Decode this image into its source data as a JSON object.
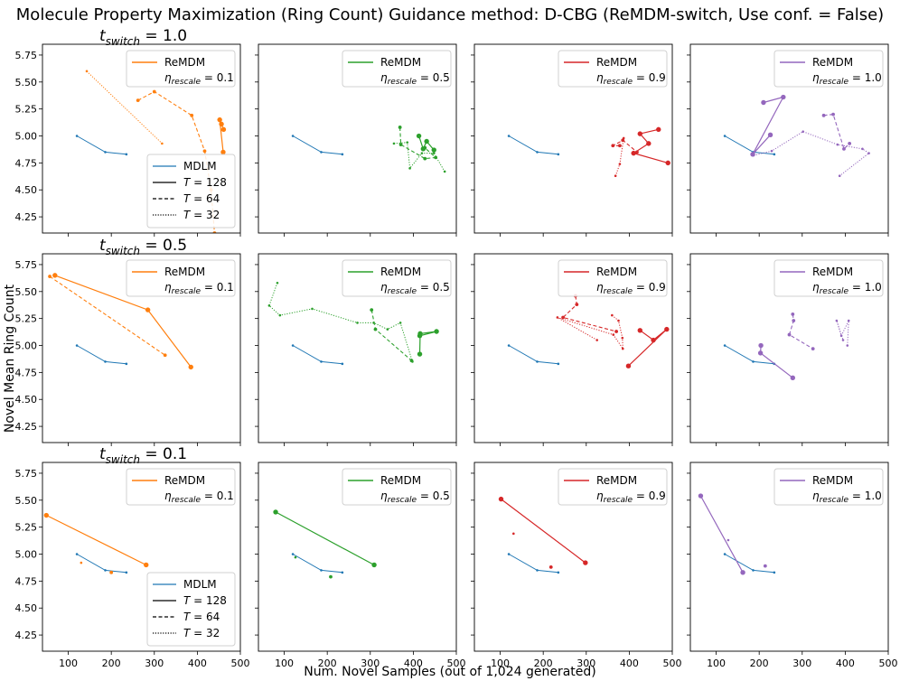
{
  "title": "Molecule Property Maximization (Ring Count) Guidance method: D-CBG (ReMDM-switch, Use conf. = False)",
  "xlabel": "Num. Novel Samples (out of 1,024 generated)",
  "ylabel": "Novel Mean Ring Count",
  "row_titles": [
    "t_switch = 1.0",
    "t_switch = 0.5",
    "t_switch = 0.1"
  ],
  "colors": {
    "mdlm": "#1f77b4",
    "eta_0.1": "#ff7f0e",
    "eta_0.5": "#2ca02c",
    "eta_0.9": "#d62728",
    "eta_1.0": "#9467bd",
    "black": "#000000"
  },
  "legend_remdm": "ReMDM",
  "eta_labels": [
    "0.1",
    "0.5",
    "0.9",
    "1.0"
  ],
  "legend_lower": [
    "MDLM",
    "T = 128",
    "T = 64",
    "T = 32"
  ],
  "chart_data": {
    "type": "line",
    "grid": "3x4",
    "xlim": [
      40,
      500
    ],
    "ylim": [
      4.1,
      5.85
    ],
    "xticks": [
      100,
      200,
      300,
      400,
      500
    ],
    "xtick_labels": [
      "100",
      "200",
      "300",
      "400",
      "500"
    ],
    "yticks": [
      4.25,
      4.5,
      4.75,
      5.0,
      5.25,
      5.5,
      5.75
    ],
    "ytick_labels": [
      "4.25",
      "4.50",
      "4.75",
      "5.00",
      "5.25",
      "5.50",
      "5.75"
    ],
    "mdlm": [
      [
        120,
        5.0
      ],
      [
        186,
        4.85
      ],
      [
        235,
        4.83
      ]
    ],
    "rows": [
      {
        "t_switch": "1.0",
        "panels": [
          {
            "eta": "0.1",
            "T128": [
              [
                461,
                5.06
              ],
              [
                456,
                5.11
              ],
              [
                452,
                5.15
              ],
              [
                460,
                4.85
              ]
            ],
            "T64": [
              [
                262,
                5.33
              ],
              [
                300,
                5.41
              ],
              [
                387,
                5.19
              ],
              [
                417,
                4.86
              ],
              [
                432,
                4.5
              ],
              [
                440,
                4.1
              ]
            ],
            "T32": [
              [
                143,
                5.6
              ],
              [
                318,
                4.93
              ]
            ]
          },
          {
            "eta": "0.5",
            "T128": [
              [
                413,
                5.0
              ],
              [
                423,
                4.88
              ],
              [
                431,
                4.95
              ],
              [
                448,
                4.87
              ]
            ],
            "T64": [
              [
                369,
                5.08
              ],
              [
                371,
                4.92
              ],
              [
                427,
                4.79
              ],
              [
                452,
                4.8
              ],
              [
                427,
                4.89
              ]
            ],
            "T32": [
              [
                355,
                4.93
              ],
              [
                386,
                4.94
              ],
              [
                392,
                4.7
              ],
              [
                420,
                4.84
              ],
              [
                448,
                4.84
              ],
              [
                473,
                4.67
              ]
            ]
          },
          {
            "eta": "0.9",
            "T128": [
              [
                468,
                5.06
              ],
              [
                425,
                5.02
              ],
              [
                445,
                4.93
              ],
              [
                410,
                4.84
              ],
              [
                490,
                4.75
              ]
            ],
            "T64": [
              [
                378,
                4.91
              ],
              [
                362,
                4.91
              ],
              [
                385,
                4.96
              ],
              [
                418,
                4.85
              ]
            ],
            "T32": [
              [
                387,
                4.98
              ],
              [
                378,
                4.74
              ],
              [
                368,
                4.63
              ]
            ]
          },
          {
            "eta": "1.0",
            "T128": [
              [
                210,
                5.31
              ],
              [
                256,
                5.36
              ],
              [
                185,
                4.83
              ],
              [
                226,
                5.01
              ]
            ],
            "T64": [
              [
                350,
                5.19
              ],
              [
                372,
                5.2
              ],
              [
                397,
                4.88
              ],
              [
                410,
                4.93
              ]
            ],
            "T32": [
              [
                187,
                4.82
              ],
              [
                229,
                4.86
              ],
              [
                302,
                5.04
              ],
              [
                382,
                4.92
              ],
              [
                440,
                4.88
              ],
              [
                455,
                4.84
              ],
              [
                387,
                4.63
              ]
            ]
          }
        ]
      },
      {
        "t_switch": "0.5",
        "panels": [
          {
            "eta": "0.1",
            "T128": [
              [
                69,
                5.65
              ],
              [
                285,
                5.33
              ],
              [
                385,
                4.8
              ]
            ],
            "T64": [
              [
                57,
                5.64
              ],
              [
                325,
                4.91
              ]
            ],
            "T32": []
          },
          {
            "eta": "0.5",
            "T128": [
              [
                415,
                5.09
              ],
              [
                454,
                5.13
              ],
              [
                416,
                5.11
              ],
              [
                415,
                4.92
              ]
            ],
            "T64": [
              [
                303,
                5.33
              ],
              [
                312,
                5.15
              ],
              [
                396,
                4.86
              ]
            ],
            "T32": [
              [
                84,
                5.58
              ],
              [
                65,
                5.37
              ],
              [
                90,
                5.28
              ],
              [
                165,
                5.34
              ],
              [
                270,
                5.21
              ],
              [
                308,
                5.21
              ],
              [
                340,
                5.15
              ],
              [
                370,
                5.21
              ],
              [
                398,
                4.85
              ]
            ]
          },
          {
            "eta": "0.9",
            "T128": [
              [
                425,
                5.14
              ],
              [
                456,
                5.05
              ],
              [
                487,
                5.15
              ],
              [
                398,
                4.81
              ]
            ],
            "T64": [
              [
                275,
                5.46
              ],
              [
                278,
                5.38
              ],
              [
                246,
                5.26
              ],
              [
                370,
                5.13
              ]
            ],
            "T32": [
              [
                360,
                5.28
              ],
              [
                375,
                5.23
              ],
              [
                384,
                5.07
              ],
              [
                385,
                4.97
              ],
              [
                363,
                5.1
              ],
              [
                233,
                5.26
              ],
              [
                325,
                5.05
              ]
            ]
          },
          {
            "eta": "1.0",
            "T128": [
              [
                204,
                5.0
              ],
              [
                203,
                4.93
              ],
              [
                278,
                4.7
              ]
            ],
            "T64": [
              [
                278,
                5.29
              ],
              [
                280,
                5.23
              ],
              [
                270,
                5.1
              ],
              [
                325,
                4.97
              ]
            ],
            "T32": [
              [
                405,
                5.0
              ],
              [
                408,
                5.23
              ],
              [
                391,
                5.09
              ],
              [
                380,
                5.23
              ],
              [
                395,
                5.05
              ]
            ]
          }
        ]
      },
      {
        "t_switch": "0.1",
        "panels": [
          {
            "eta": "0.1",
            "T128": [
              [
                49,
                5.36
              ],
              [
                281,
                4.9
              ]
            ],
            "T64": [
              [
                200,
                4.83
              ]
            ],
            "T32": [
              [
                130,
                4.92
              ]
            ]
          },
          {
            "eta": "0.5",
            "T128": [
              [
                80,
                5.39
              ],
              [
                309,
                4.9
              ]
            ],
            "T64": [
              [
                208,
                4.79
              ]
            ],
            "T32": [
              [
                126,
                4.97
              ]
            ]
          },
          {
            "eta": "0.9",
            "T128": [
              [
                102,
                5.51
              ],
              [
                298,
                4.92
              ]
            ],
            "T64": [
              [
                218,
                4.88
              ]
            ],
            "T32": [
              [
                131,
                5.19
              ]
            ]
          },
          {
            "eta": "1.0",
            "T128": [
              [
                64,
                5.54
              ],
              [
                162,
                4.83
              ]
            ],
            "T64": [
              [
                214,
                4.89
              ]
            ],
            "T32": [
              [
                128,
                5.13
              ]
            ]
          }
        ]
      }
    ]
  }
}
